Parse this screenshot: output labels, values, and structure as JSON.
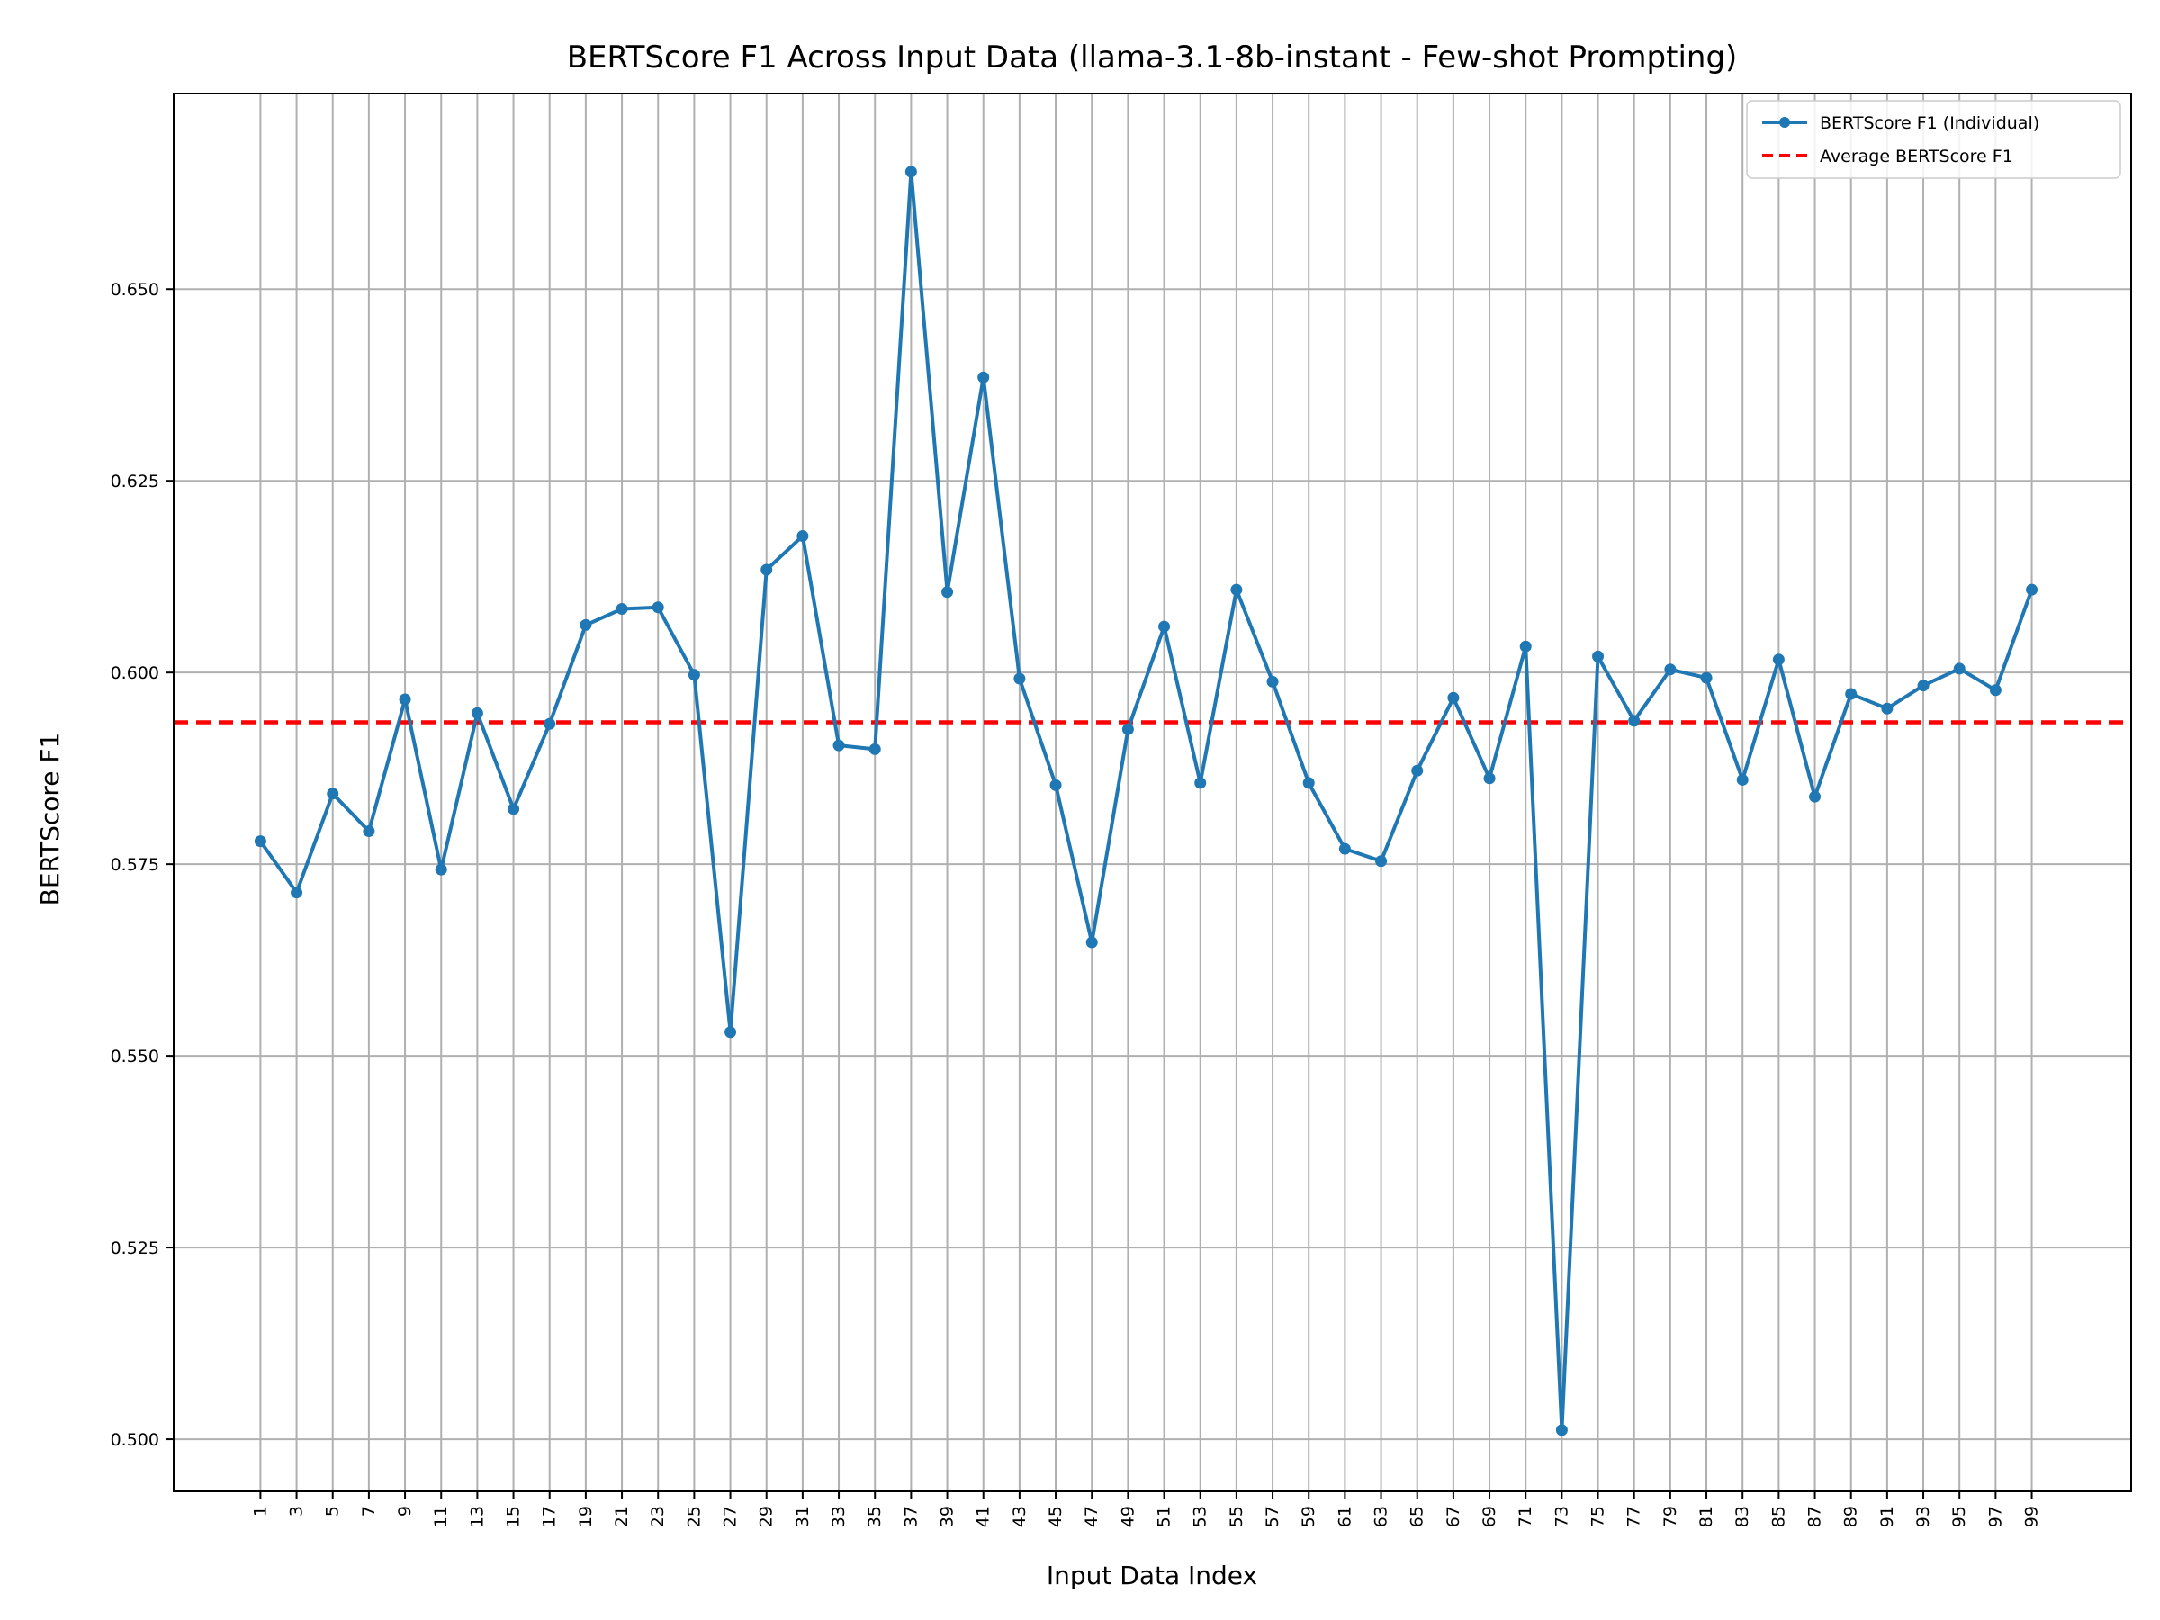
{
  "chart_data": {
    "type": "line",
    "title": "BERTScore F1 Across Input Data (llama-3.1-8b-instant - Few-shot Prompting)",
    "xlabel": "Input Data Index",
    "ylabel": "BERTScore F1",
    "x": [
      1,
      3,
      5,
      7,
      9,
      11,
      13,
      15,
      17,
      19,
      21,
      23,
      25,
      27,
      29,
      31,
      33,
      35,
      37,
      39,
      41,
      43,
      45,
      47,
      49,
      51,
      53,
      55,
      57,
      59,
      61,
      63,
      65,
      67,
      69,
      71,
      73,
      75,
      77,
      79,
      81,
      83,
      85,
      87,
      89,
      91,
      93,
      95,
      97,
      99
    ],
    "x_tick_labels": [
      "1",
      "3",
      "5",
      "7",
      "9",
      "11",
      "13",
      "15",
      "17",
      "19",
      "21",
      "23",
      "25",
      "27",
      "29",
      "31",
      "33",
      "35",
      "37",
      "39",
      "41",
      "43",
      "45",
      "47",
      "49",
      "51",
      "53",
      "55",
      "57",
      "59",
      "61",
      "63",
      "65",
      "67",
      "69",
      "71",
      "73",
      "75",
      "77",
      "79",
      "81",
      "83",
      "85",
      "87",
      "89",
      "91",
      "93",
      "95",
      "97",
      "99"
    ],
    "y_ticks": [
      0.5,
      0.525,
      0.55,
      0.575,
      0.6,
      0.625,
      0.65
    ],
    "y_tick_labels": [
      "0.500",
      "0.525",
      "0.550",
      "0.575",
      "0.600",
      "0.625",
      "0.650"
    ],
    "xlim": [
      -3.8,
      104.5
    ],
    "ylim": [
      0.4932,
      0.6755
    ],
    "grid": true,
    "legend_position": "top-right",
    "series": [
      {
        "name": "BERTScore F1 (Individual)",
        "color": "#1f77b4",
        "style": "line-with-markers",
        "values": [
          0.578,
          0.5713,
          0.5842,
          0.5793,
          0.5965,
          0.5743,
          0.5947,
          0.5822,
          0.5933,
          0.6062,
          0.6083,
          0.6085,
          0.5997,
          0.5531,
          0.6134,
          0.6178,
          0.5905,
          0.59,
          0.6653,
          0.6105,
          0.6385,
          0.5992,
          0.5853,
          0.5648,
          0.5926,
          0.606,
          0.5856,
          0.6108,
          0.5988,
          0.5856,
          0.577,
          0.5754,
          0.5872,
          0.5967,
          0.5862,
          0.6034,
          0.5012,
          0.6021,
          0.5937,
          0.6004,
          0.5993,
          0.586,
          0.6017,
          0.5838,
          0.5972,
          0.5953,
          0.5983,
          0.6005,
          0.5977,
          0.6108
        ]
      },
      {
        "name": "Average BERTScore F1",
        "color": "#ff0000",
        "style": "dashed-horizontal",
        "value": 0.5935
      }
    ]
  }
}
